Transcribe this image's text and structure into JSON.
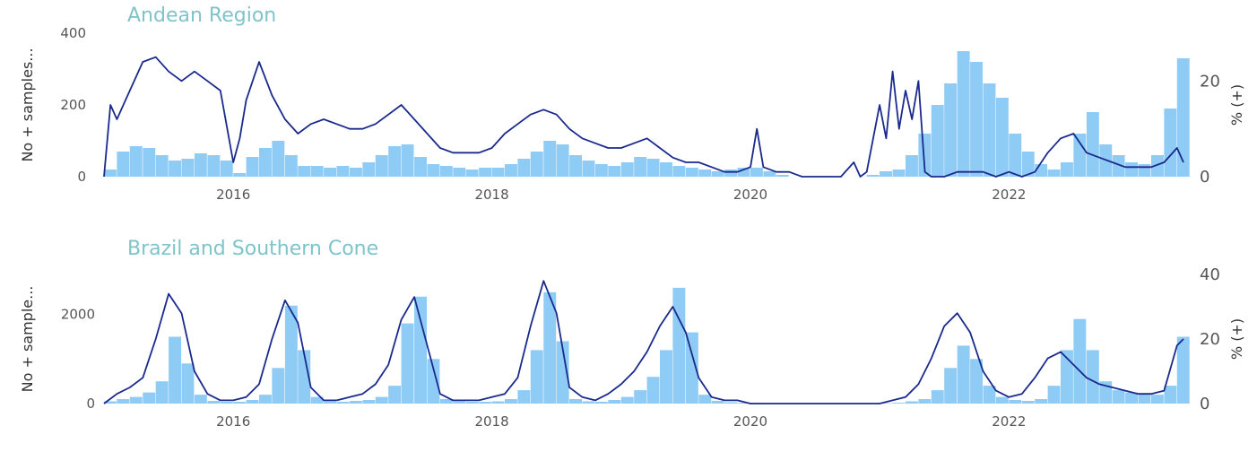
{
  "colors": {
    "bars": "#8ecbf5",
    "line": "#1a2a8c",
    "title": "#7ec4c9",
    "tick": "#555555"
  },
  "chart_data": [
    {
      "type": "bar+line",
      "title": "Andean Region",
      "ylabel_left": "No + samples...",
      "ylabel_right": "% (+)",
      "xlim": [
        2015.0,
        2023.35
      ],
      "ylim_left": [
        0,
        400
      ],
      "ylim_right": [
        0,
        30
      ],
      "xticks": [
        "2016",
        "2018",
        "2020",
        "2022"
      ],
      "yticks_left": [
        "0",
        "200",
        "400"
      ],
      "yticks_right": [
        "0",
        "20"
      ],
      "bars": {
        "name": "No + samples",
        "x": [
          2015.0,
          2015.1,
          2015.2,
          2015.3,
          2015.4,
          2015.5,
          2015.6,
          2015.7,
          2015.8,
          2015.9,
          2016.0,
          2016.1,
          2016.2,
          2016.3,
          2016.4,
          2016.5,
          2016.6,
          2016.7,
          2016.8,
          2016.9,
          2017.0,
          2017.1,
          2017.2,
          2017.3,
          2017.4,
          2017.5,
          2017.6,
          2017.7,
          2017.8,
          2017.9,
          2018.0,
          2018.1,
          2018.2,
          2018.3,
          2018.4,
          2018.5,
          2018.6,
          2018.7,
          2018.8,
          2018.9,
          2019.0,
          2019.1,
          2019.2,
          2019.3,
          2019.4,
          2019.5,
          2019.6,
          2019.7,
          2019.8,
          2019.9,
          2020.0,
          2020.1,
          2020.2,
          2020.3,
          2020.4,
          2020.5,
          2020.6,
          2020.7,
          2020.8,
          2020.9,
          2021.0,
          2021.1,
          2021.2,
          2021.3,
          2021.4,
          2021.5,
          2021.6,
          2021.7,
          2021.8,
          2021.9,
          2022.0,
          2022.1,
          2022.2,
          2022.3,
          2022.4,
          2022.5,
          2022.6,
          2022.7,
          2022.8,
          2022.9,
          2023.0,
          2023.1,
          2023.2,
          2023.3
        ],
        "values": [
          20,
          70,
          85,
          80,
          60,
          45,
          50,
          65,
          60,
          45,
          10,
          55,
          80,
          100,
          60,
          30,
          30,
          25,
          30,
          25,
          40,
          60,
          85,
          90,
          55,
          35,
          30,
          25,
          20,
          25,
          25,
          35,
          50,
          70,
          100,
          90,
          60,
          45,
          35,
          30,
          40,
          55,
          50,
          40,
          30,
          25,
          20,
          15,
          20,
          25,
          25,
          15,
          5,
          0,
          0,
          0,
          0,
          0,
          0,
          5,
          15,
          20,
          60,
          120,
          200,
          260,
          350,
          320,
          260,
          220,
          120,
          70,
          35,
          20,
          40,
          120,
          180,
          90,
          60,
          40,
          35,
          60,
          190,
          330
        ]
      },
      "line": {
        "name": "% (+)",
        "x": [
          2015.0,
          2015.05,
          2015.1,
          2015.2,
          2015.3,
          2015.4,
          2015.5,
          2015.6,
          2015.7,
          2015.8,
          2015.9,
          2016.0,
          2016.05,
          2016.1,
          2016.2,
          2016.3,
          2016.4,
          2016.5,
          2016.6,
          2016.7,
          2016.8,
          2016.9,
          2017.0,
          2017.1,
          2017.2,
          2017.3,
          2017.4,
          2017.5,
          2017.6,
          2017.7,
          2017.8,
          2017.9,
          2018.0,
          2018.1,
          2018.2,
          2018.3,
          2018.4,
          2018.5,
          2018.6,
          2018.7,
          2018.8,
          2018.9,
          2019.0,
          2019.1,
          2019.2,
          2019.3,
          2019.4,
          2019.5,
          2019.6,
          2019.7,
          2019.8,
          2019.9,
          2020.0,
          2020.05,
          2020.1,
          2020.2,
          2020.3,
          2020.4,
          2020.5,
          2020.6,
          2020.7,
          2020.8,
          2020.85,
          2020.9,
          2021.0,
          2021.05,
          2021.1,
          2021.15,
          2021.2,
          2021.25,
          2021.3,
          2021.35,
          2021.4,
          2021.5,
          2021.6,
          2021.7,
          2021.8,
          2021.9,
          2022.0,
          2022.1,
          2022.2,
          2022.3,
          2022.4,
          2022.5,
          2022.6,
          2022.7,
          2022.8,
          2022.9,
          2023.0,
          2023.1,
          2023.2,
          2023.3,
          2023.35
        ],
        "values": [
          0,
          15,
          12,
          18,
          24,
          25,
          22,
          20,
          22,
          20,
          18,
          3,
          8,
          16,
          24,
          17,
          12,
          9,
          11,
          12,
          11,
          10,
          10,
          11,
          13,
          15,
          12,
          9,
          6,
          5,
          5,
          5,
          6,
          9,
          11,
          13,
          14,
          13,
          10,
          8,
          7,
          6,
          6,
          7,
          8,
          6,
          4,
          3,
          3,
          2,
          1,
          1,
          2,
          10,
          2,
          1,
          1,
          0,
          0,
          0,
          0,
          3,
          0,
          1,
          15,
          8,
          22,
          10,
          18,
          12,
          20,
          1,
          0,
          0,
          1,
          1,
          1,
          0,
          1,
          0,
          1,
          5,
          8,
          9,
          5,
          4,
          3,
          2,
          2,
          2,
          3,
          6,
          3
        ]
      }
    },
    {
      "type": "bar+line",
      "title": "Brazil and Southern Cone",
      "ylabel_left": "No + sample...",
      "ylabel_right": "% (+)",
      "xlim": [
        2015.0,
        2023.35
      ],
      "ylim_left": [
        0,
        2900
      ],
      "ylim_right": [
        0,
        40
      ],
      "xticks": [
        "2016",
        "2018",
        "2020",
        "2022"
      ],
      "yticks_left": [
        "0",
        "2000"
      ],
      "yticks_right": [
        "0",
        "20",
        "40"
      ],
      "bars": {
        "name": "No + samples",
        "x": [
          2015.0,
          2015.1,
          2015.2,
          2015.3,
          2015.4,
          2015.5,
          2015.6,
          2015.7,
          2015.8,
          2015.9,
          2016.0,
          2016.1,
          2016.2,
          2016.3,
          2016.4,
          2016.5,
          2016.6,
          2016.7,
          2016.8,
          2016.9,
          2017.0,
          2017.1,
          2017.2,
          2017.3,
          2017.4,
          2017.5,
          2017.6,
          2017.7,
          2017.8,
          2017.9,
          2018.0,
          2018.1,
          2018.2,
          2018.3,
          2018.4,
          2018.5,
          2018.6,
          2018.7,
          2018.8,
          2018.9,
          2019.0,
          2019.1,
          2019.2,
          2019.3,
          2019.4,
          2019.5,
          2019.6,
          2019.7,
          2019.8,
          2019.9,
          2020.0,
          2020.1,
          2020.2,
          2020.3,
          2020.4,
          2020.5,
          2020.6,
          2020.7,
          2020.8,
          2020.9,
          2021.0,
          2021.1,
          2021.2,
          2021.3,
          2021.4,
          2021.5,
          2021.6,
          2021.7,
          2021.8,
          2021.9,
          2022.0,
          2022.1,
          2022.2,
          2022.3,
          2022.4,
          2022.5,
          2022.6,
          2022.7,
          2022.8,
          2022.9,
          2023.0,
          2023.1,
          2023.2,
          2023.3
        ],
        "values": [
          50,
          100,
          150,
          250,
          500,
          1500,
          900,
          200,
          60,
          40,
          40,
          80,
          200,
          800,
          2200,
          1200,
          150,
          50,
          40,
          60,
          80,
          150,
          400,
          1800,
          2400,
          1000,
          100,
          50,
          40,
          40,
          50,
          100,
          300,
          1200,
          2500,
          1400,
          100,
          50,
          40,
          80,
          150,
          300,
          600,
          1200,
          2600,
          1600,
          200,
          60,
          30,
          20,
          20,
          10,
          5,
          5,
          5,
          5,
          5,
          5,
          5,
          5,
          10,
          20,
          50,
          100,
          300,
          800,
          1300,
          1000,
          400,
          150,
          80,
          60,
          100,
          400,
          1200,
          1900,
          1200,
          500,
          300,
          250,
          200,
          200,
          400,
          1500
        ]
      },
      "line": {
        "name": "% (+)",
        "x": [
          2015.0,
          2015.1,
          2015.2,
          2015.3,
          2015.4,
          2015.5,
          2015.6,
          2015.7,
          2015.8,
          2015.9,
          2016.0,
          2016.1,
          2016.2,
          2016.3,
          2016.4,
          2016.5,
          2016.6,
          2016.7,
          2016.8,
          2016.9,
          2017.0,
          2017.1,
          2017.2,
          2017.3,
          2017.4,
          2017.5,
          2017.6,
          2017.7,
          2017.8,
          2017.9,
          2018.0,
          2018.1,
          2018.2,
          2018.3,
          2018.4,
          2018.5,
          2018.6,
          2018.7,
          2018.8,
          2018.9,
          2019.0,
          2019.1,
          2019.2,
          2019.3,
          2019.4,
          2019.5,
          2019.6,
          2019.7,
          2019.8,
          2019.9,
          2020.0,
          2020.2,
          2020.4,
          2020.6,
          2020.8,
          2021.0,
          2021.2,
          2021.3,
          2021.4,
          2021.5,
          2021.6,
          2021.7,
          2021.8,
          2021.9,
          2022.0,
          2022.1,
          2022.2,
          2022.3,
          2022.4,
          2022.5,
          2022.6,
          2022.7,
          2022.8,
          2022.9,
          2023.0,
          2023.1,
          2023.2,
          2023.3,
          2023.35
        ],
        "values": [
          0,
          3,
          5,
          8,
          20,
          34,
          28,
          10,
          3,
          1,
          1,
          2,
          6,
          20,
          32,
          25,
          5,
          1,
          1,
          2,
          3,
          6,
          12,
          26,
          33,
          18,
          3,
          1,
          1,
          1,
          2,
          3,
          8,
          24,
          38,
          28,
          5,
          2,
          1,
          3,
          6,
          10,
          16,
          24,
          30,
          22,
          8,
          2,
          1,
          1,
          0,
          0,
          0,
          0,
          0,
          0,
          2,
          6,
          14,
          24,
          28,
          22,
          10,
          4,
          2,
          3,
          8,
          14,
          16,
          12,
          8,
          6,
          5,
          4,
          3,
          3,
          4,
          18,
          20
        ]
      }
    }
  ]
}
